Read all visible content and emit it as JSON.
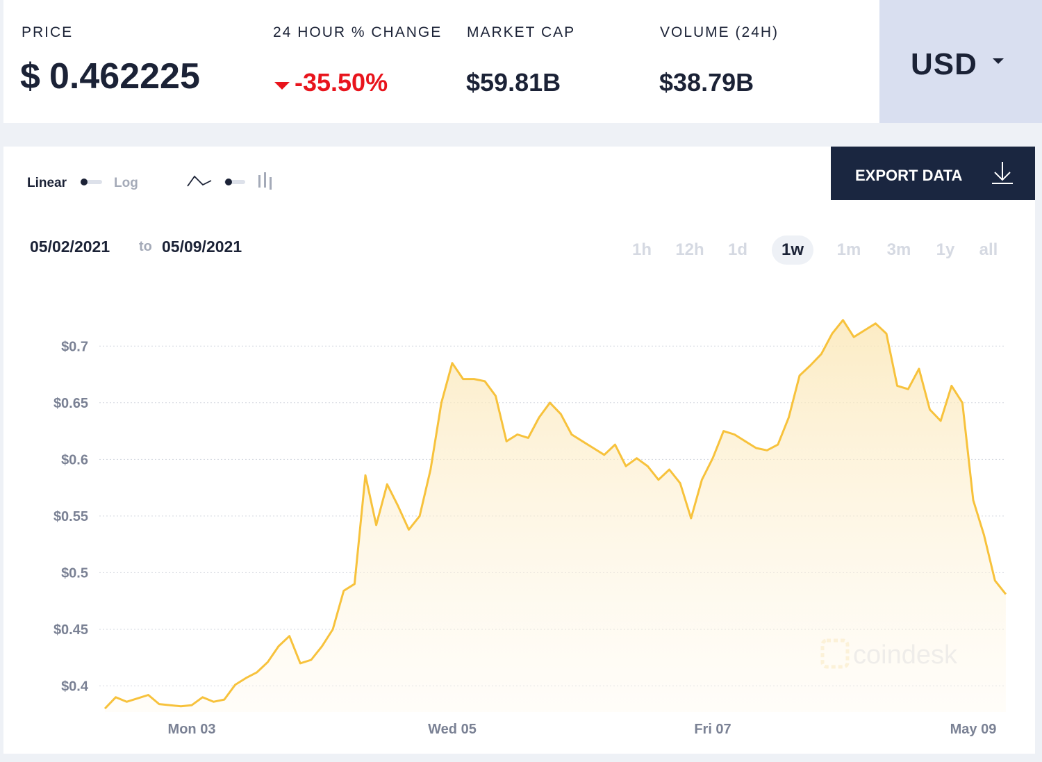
{
  "header": {
    "price": {
      "label": "PRICE",
      "currency": "$",
      "value": "0.462225"
    },
    "change_24h": {
      "label": "24 HOUR % CHANGE",
      "value": "-35.50%"
    },
    "market_cap": {
      "label": "MARKET CAP",
      "value": "$59.81B"
    },
    "volume": {
      "label": "VOLUME (24H)",
      "value": "$38.79B"
    },
    "currency_selector": "USD"
  },
  "controls": {
    "scale_options": [
      "Linear",
      "Log"
    ],
    "export_button": "EXPORT DATA",
    "date_from": "05/02/2021",
    "date_separator": "to",
    "date_to": "05/09/2021",
    "ranges": [
      "1h",
      "12h",
      "1d",
      "1w",
      "1m",
      "3m",
      "1y",
      "all"
    ],
    "selected_range": "1w"
  },
  "chart_data": {
    "type": "area",
    "color": "#f7c23c",
    "grid": true,
    "watermark": "coindesk",
    "categories": [
      null,
      null,
      null,
      null,
      null,
      null,
      null,
      null,
      "Mon 03",
      null,
      null,
      null,
      null,
      null,
      null,
      null,
      null,
      null,
      null,
      null,
      null,
      null,
      null,
      null,
      null,
      null,
      null,
      null,
      null,
      null,
      null,
      null,
      "Wed 05",
      null,
      null,
      null,
      null,
      null,
      null,
      null,
      null,
      null,
      null,
      null,
      null,
      null,
      null,
      null,
      null,
      null,
      null,
      null,
      null,
      null,
      null,
      null,
      "Fri 07",
      null,
      null,
      null,
      null,
      null,
      null,
      null,
      null,
      null,
      null,
      null,
      null,
      null,
      null,
      null,
      null,
      null,
      null,
      null,
      null,
      null,
      null,
      null,
      "May 09",
      null,
      null,
      null
    ],
    "values": [
      0.38,
      0.39,
      0.386,
      0.389,
      0.392,
      0.384,
      0.383,
      0.382,
      0.383,
      0.39,
      0.386,
      0.388,
      0.401,
      0.407,
      0.412,
      0.421,
      0.435,
      0.444,
      0.42,
      0.423,
      0.435,
      0.45,
      0.484,
      0.49,
      0.586,
      0.542,
      0.578,
      0.559,
      0.538,
      0.55,
      0.591,
      0.65,
      0.685,
      0.671,
      0.671,
      0.669,
      0.656,
      0.616,
      0.622,
      0.619,
      0.637,
      0.65,
      0.64,
      0.622,
      0.616,
      0.61,
      0.604,
      0.613,
      0.594,
      0.601,
      0.594,
      0.582,
      0.591,
      0.579,
      0.548,
      0.582,
      0.601,
      0.625,
      0.622,
      0.616,
      0.61,
      0.608,
      0.613,
      0.637,
      0.674,
      0.683,
      0.693,
      0.711,
      0.723,
      0.708,
      0.714,
      0.72,
      0.711,
      0.665,
      0.662,
      0.68,
      0.644,
      0.634,
      0.665,
      0.65,
      0.564,
      0.533,
      0.493,
      0.481
    ],
    "ylim": [
      0.377,
      0.748
    ],
    "yticks": [
      {
        "value": 0.4,
        "label": "$0.4"
      },
      {
        "value": 0.45,
        "label": "$0.45"
      },
      {
        "value": 0.5,
        "label": "$0.5"
      },
      {
        "value": 0.55,
        "label": "$0.55"
      },
      {
        "value": 0.6,
        "label": "$0.6"
      },
      {
        "value": 0.65,
        "label": "$0.65"
      },
      {
        "value": 0.7,
        "label": "$0.7"
      }
    ]
  }
}
